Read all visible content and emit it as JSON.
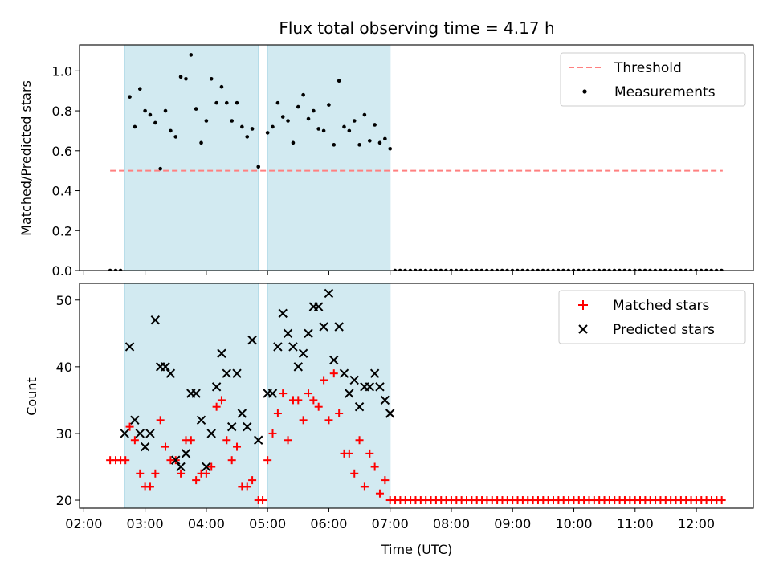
{
  "title": "Flux total observing time = 4.17 h",
  "colors": {
    "shade": "#add8e6",
    "threshold": "#ff8080",
    "matched": "#ff0000",
    "predicted": "#000000",
    "measurement": "#000000"
  },
  "chart_data": [
    {
      "type": "scatter",
      "ylabel": "Matched/Predicted stars",
      "xlabel": "",
      "ylim": [
        0,
        1.13
      ],
      "yticks": [
        "0.0",
        "0.2",
        "0.4",
        "0.6",
        "0.8",
        "1.0"
      ],
      "ytick_values": [
        0,
        0.2,
        0.4,
        0.6,
        0.8,
        1.0
      ],
      "legend": {
        "placement": "upper right",
        "entries": [
          "Threshold",
          "Measurements"
        ]
      },
      "shaded_intervals_utc_hours": [
        [
          2.667,
          4.85
        ],
        [
          5.0,
          7.0
        ]
      ],
      "threshold": {
        "value": 0.5,
        "x_range": [
          2.43,
          12.43
        ]
      },
      "measurements": {
        "x": [
          2.75,
          2.833,
          2.917,
          3.0,
          3.083,
          3.167,
          3.25,
          3.333,
          3.417,
          3.5,
          3.583,
          3.667,
          3.75,
          3.833,
          3.917,
          4.0,
          4.083,
          4.167,
          4.25,
          4.333,
          4.417,
          4.5,
          4.583,
          4.667,
          4.75,
          4.85,
          5.0,
          5.083,
          5.167,
          5.25,
          5.333,
          5.417,
          5.5,
          5.583,
          5.667,
          5.75,
          5.833,
          5.917,
          6.0,
          6.083,
          6.167,
          6.25,
          6.333,
          6.417,
          6.5,
          6.583,
          6.667,
          6.75,
          6.833,
          6.917,
          7.0
        ],
        "y": [
          0.87,
          0.72,
          0.91,
          0.8,
          0.78,
          0.74,
          0.51,
          0.8,
          0.7,
          0.67,
          0.97,
          0.96,
          1.08,
          0.81,
          0.64,
          0.75,
          0.96,
          0.84,
          0.92,
          0.84,
          0.75,
          0.84,
          0.72,
          0.67,
          0.71,
          0.52,
          0.69,
          0.72,
          0.84,
          0.77,
          0.75,
          0.64,
          0.82,
          0.88,
          0.76,
          0.8,
          0.71,
          0.7,
          0.83,
          0.63,
          0.95,
          0.72,
          0.7,
          0.75,
          0.63,
          0.78,
          0.65,
          0.73,
          0.64,
          0.66,
          0.61
        ],
        "zeros_x": {
          "before": [
            2.43,
            2.52,
            2.6
          ],
          "after_start": 7.08,
          "after_end": 12.43,
          "after_step": 0.0833
        }
      }
    },
    {
      "type": "scatter",
      "ylabel": "Count",
      "xlabel": "Time (UTC)",
      "ylim": [
        18.8,
        52.5
      ],
      "yticks": [
        "20",
        "30",
        "40",
        "50"
      ],
      "ytick_values": [
        20,
        30,
        40,
        50
      ],
      "xlim_utc_hours": [
        1.93,
        12.93
      ],
      "xticks": [
        "02:00",
        "03:00",
        "04:00",
        "05:00",
        "06:00",
        "07:00",
        "08:00",
        "09:00",
        "10:00",
        "11:00",
        "12:00"
      ],
      "xtick_values": [
        2,
        3,
        4,
        5,
        6,
        7,
        8,
        9,
        10,
        11,
        12
      ],
      "legend": {
        "placement": "upper right",
        "entries": [
          "Matched stars",
          "Predicted stars"
        ]
      },
      "matched": {
        "x": [
          2.43,
          2.52,
          2.6,
          2.68,
          2.75,
          2.833,
          2.917,
          3.0,
          3.083,
          3.167,
          3.25,
          3.333,
          3.417,
          3.5,
          3.583,
          3.667,
          3.75,
          3.833,
          3.917,
          4.0,
          4.083,
          4.167,
          4.25,
          4.333,
          4.417,
          4.5,
          4.583,
          4.667,
          4.75,
          4.85,
          4.92,
          5.0,
          5.083,
          5.167,
          5.25,
          5.333,
          5.417,
          5.5,
          5.583,
          5.667,
          5.75,
          5.833,
          5.917,
          6.0,
          6.083,
          6.167,
          6.25,
          6.333,
          6.417,
          6.5,
          6.583,
          6.667,
          6.75,
          6.833,
          6.917
        ],
        "y": [
          26,
          26,
          26,
          26,
          31,
          29,
          24,
          22,
          22,
          24,
          32,
          28,
          26,
          26,
          24,
          29,
          29,
          23,
          24,
          24,
          25,
          34,
          35,
          29,
          26,
          28,
          22,
          22,
          23,
          20,
          20,
          26,
          30,
          33,
          36,
          29,
          35,
          35,
          32,
          36,
          35,
          34,
          38,
          32,
          39,
          33,
          27,
          27,
          24,
          29,
          22,
          27,
          25,
          21,
          23
        ],
        "tail_start": 7.0,
        "tail_end": 12.43,
        "tail_step": 0.0833,
        "tail_value": 20
      },
      "predicted": {
        "x": [
          2.667,
          2.75,
          2.833,
          2.917,
          3.0,
          3.083,
          3.167,
          3.25,
          3.333,
          3.417,
          3.5,
          3.583,
          3.667,
          3.75,
          3.833,
          3.917,
          4.0,
          4.083,
          4.167,
          4.25,
          4.333,
          4.417,
          4.5,
          4.583,
          4.667,
          4.75,
          4.85,
          5.0,
          5.083,
          5.167,
          5.25,
          5.333,
          5.417,
          5.5,
          5.583,
          5.667,
          5.75,
          5.833,
          5.917,
          6.0,
          6.083,
          6.167,
          6.25,
          6.333,
          6.417,
          6.5,
          6.583,
          6.667,
          6.75,
          6.833,
          6.917,
          7.0
        ],
        "y": [
          30,
          43,
          32,
          30,
          28,
          30,
          47,
          40,
          40,
          39,
          26,
          25,
          27,
          36,
          36,
          32,
          25,
          30,
          37,
          42,
          39,
          31,
          39,
          33,
          31,
          44,
          29,
          36,
          36,
          43,
          48,
          45,
          43,
          40,
          42,
          45,
          49,
          49,
          46,
          51,
          41,
          46,
          39,
          36,
          38,
          34,
          37,
          37,
          39,
          37,
          35,
          33
        ]
      }
    }
  ]
}
